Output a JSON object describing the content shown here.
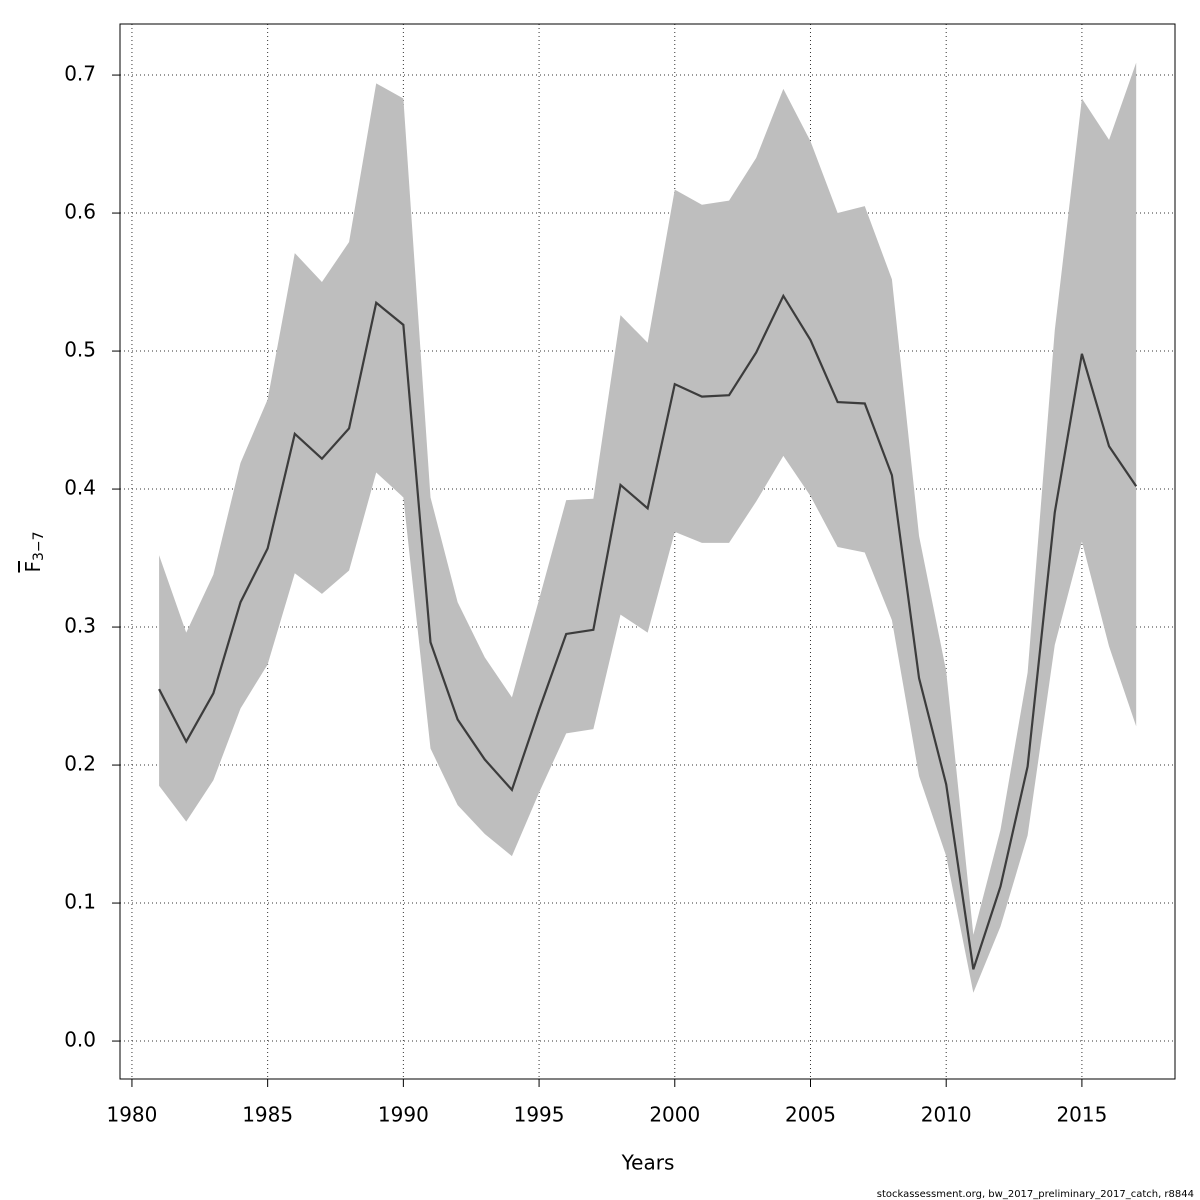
{
  "chart_data": {
    "type": "line",
    "xlabel": "Years",
    "ylabel": {
      "main": "F",
      "sub": "3−7"
    },
    "footnote": "stockassessment.org, bw_2017_preliminary_2017_catch, r8844",
    "x": [
      1981,
      1982,
      1983,
      1984,
      1985,
      1986,
      1987,
      1988,
      1989,
      1990,
      1991,
      1992,
      1993,
      1994,
      1995,
      1996,
      1997,
      1998,
      1999,
      2000,
      2001,
      2002,
      2003,
      2004,
      2005,
      2006,
      2007,
      2008,
      2009,
      2010,
      2011,
      2012,
      2013,
      2014,
      2015,
      2016,
      2017
    ],
    "values": [
      0.255,
      0.217,
      0.252,
      0.318,
      0.357,
      0.44,
      0.422,
      0.444,
      0.535,
      0.519,
      0.289,
      0.233,
      0.204,
      0.182,
      0.24,
      0.295,
      0.298,
      0.403,
      0.386,
      0.476,
      0.467,
      0.468,
      0.499,
      0.54,
      0.508,
      0.463,
      0.462,
      0.41,
      0.263,
      0.186,
      0.052,
      0.112,
      0.199,
      0.383,
      0.498,
      0.431,
      0.402
    ],
    "upper": [
      0.352,
      0.296,
      0.338,
      0.419,
      0.465,
      0.571,
      0.55,
      0.579,
      0.694,
      0.683,
      0.394,
      0.318,
      0.278,
      0.249,
      0.32,
      0.392,
      0.393,
      0.526,
      0.506,
      0.617,
      0.606,
      0.609,
      0.64,
      0.69,
      0.652,
      0.6,
      0.605,
      0.552,
      0.366,
      0.268,
      0.077,
      0.153,
      0.267,
      0.515,
      0.683,
      0.653,
      0.709
    ],
    "lower": [
      0.185,
      0.159,
      0.189,
      0.241,
      0.273,
      0.339,
      0.324,
      0.341,
      0.412,
      0.394,
      0.212,
      0.171,
      0.15,
      0.134,
      0.18,
      0.223,
      0.226,
      0.309,
      0.296,
      0.369,
      0.361,
      0.361,
      0.391,
      0.424,
      0.395,
      0.358,
      0.354,
      0.305,
      0.192,
      0.134,
      0.035,
      0.083,
      0.149,
      0.287,
      0.362,
      0.286,
      0.228
    ],
    "color": "#3c3c3c",
    "band_color": "#bebebe",
    "xlim": [
      1979.56,
      2018.43
    ],
    "ylim": [
      -0.0275,
      0.737
    ],
    "xticks": [
      1980,
      1985,
      1990,
      1995,
      2000,
      2005,
      2010,
      2015
    ],
    "yticks": [
      {
        "value": 0,
        "label": "0.0"
      },
      0.1,
      0.2,
      0.3,
      0.4,
      0.5,
      0.6,
      0.7
    ],
    "grid": true
  }
}
